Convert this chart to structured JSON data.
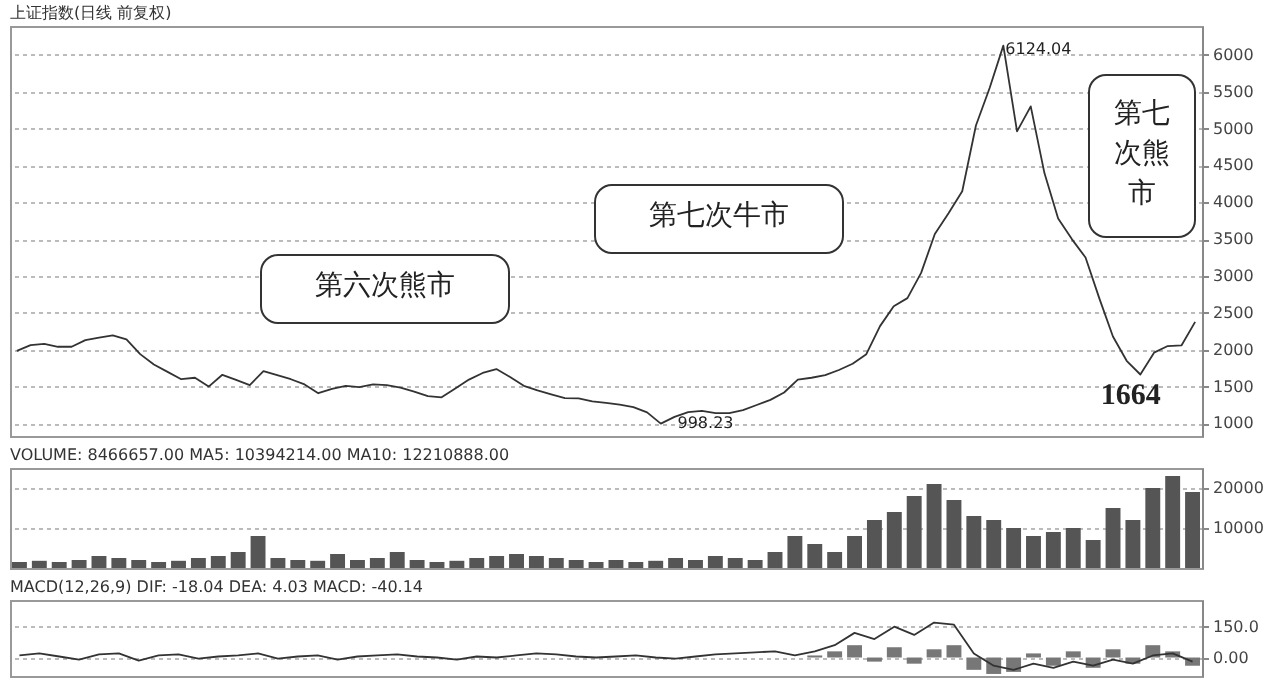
{
  "chart_data": [
    {
      "type": "line",
      "title": "上证指数(日线 前复权)",
      "color": "#333333",
      "categories": [
        null,
        null,
        null,
        null,
        null,
        null,
        null,
        null,
        null,
        null,
        null,
        null,
        null,
        null,
        null,
        null,
        null,
        null,
        null,
        null,
        null,
        null,
        null,
        null,
        null,
        null,
        null,
        null,
        null,
        null,
        null,
        null,
        null,
        null,
        null,
        null,
        null,
        null,
        null,
        null,
        null,
        null,
        null,
        null,
        null,
        null,
        null,
        null,
        null,
        null,
        null,
        null,
        null,
        null,
        null,
        null,
        null,
        null,
        null,
        null,
        null,
        null,
        null,
        null,
        null,
        null,
        null,
        null,
        null,
        null,
        null,
        null,
        null,
        null,
        null,
        null,
        null,
        null,
        null,
        null,
        null,
        null,
        null,
        null,
        null,
        null,
        null
      ],
      "values": [
        1984,
        2062,
        2078,
        2040,
        2040,
        2130,
        2165,
        2195,
        2140,
        1940,
        1800,
        1700,
        1600,
        1620,
        1500,
        1660,
        1590,
        1520,
        1710,
        1655,
        1600,
        1530,
        1410,
        1470,
        1510,
        1492,
        1530,
        1520,
        1485,
        1433,
        1370,
        1355,
        1475,
        1595,
        1685,
        1738,
        1630,
        1510,
        1450,
        1395,
        1344,
        1340,
        1300,
        1280,
        1255,
        1221,
        1150,
        998.23,
        1090,
        1155,
        1172,
        1140,
        1140,
        1180,
        1250,
        1320,
        1420,
        1595,
        1620,
        1655,
        1725,
        1810,
        1940,
        2320,
        2590,
        2700,
        3042,
        3570,
        3850,
        4149,
        5040,
        5550,
        6124.04,
        4961,
        5300,
        4395,
        3780,
        3500,
        3250,
        2700,
        2180,
        1850,
        1664,
        1960,
        2050,
        2058,
        2378
      ],
      "ylim": [
        830,
        6390
      ],
      "yticks": [
        1000,
        1500,
        2000,
        2500,
        3000,
        3500,
        4000,
        4500,
        5000,
        5500,
        6000
      ],
      "grid": "y",
      "tick_labels": "y",
      "annotations": [
        "6124.04",
        "998.23",
        "1664",
        "第六次熊市",
        "第七次牛市",
        "第七次熊市"
      ]
    },
    {
      "type": "bar",
      "title": "VOLUME: 8466657.00 MA5: 10394214.00 MA10: 12210888.00",
      "color": "#555555",
      "categories": [
        null,
        null,
        null,
        null,
        null,
        null,
        null,
        null,
        null,
        null,
        null,
        null,
        null,
        null,
        null,
        null,
        null,
        null,
        null,
        null,
        null,
        null,
        null,
        null,
        null,
        null,
        null,
        null,
        null,
        null,
        null,
        null,
        null,
        null,
        null,
        null,
        null,
        null,
        null,
        null,
        null,
        null,
        null,
        null,
        null,
        null,
        null,
        null,
        null,
        null,
        null,
        null,
        null,
        null,
        null,
        null,
        null,
        null,
        null,
        null
      ],
      "values": [
        1500,
        1800,
        1500,
        2000,
        3000,
        2500,
        2000,
        1500,
        1800,
        2500,
        3000,
        4000,
        8000,
        2500,
        2000,
        1800,
        3500,
        2000,
        2500,
        4000,
        2000,
        1500,
        1800,
        2500,
        3000,
        3500,
        3000,
        2500,
        2000,
        1500,
        2000,
        1500,
        1800,
        2500,
        2000,
        3000,
        2500,
        2000,
        4000,
        8000,
        6000,
        4000,
        8000,
        12000,
        14000,
        18000,
        21000,
        17000,
        13000,
        12000,
        10000,
        8000,
        9000,
        10000,
        7000,
        15000,
        12000,
        20000,
        23000,
        19000
      ],
      "ylim": [
        0,
        25000
      ],
      "yticks": [
        10000,
        20000
      ],
      "grid": "y",
      "tick_labels": "y"
    },
    {
      "type": "line",
      "title": "MACD(12,26,9) DIF: -18.04 DEA: 4.03 MACD: -40.14",
      "categories": [
        null,
        null,
        null,
        null,
        null,
        null,
        null,
        null,
        null,
        null,
        null,
        null,
        null,
        null,
        null,
        null,
        null,
        null,
        null,
        null,
        null,
        null,
        null,
        null,
        null,
        null,
        null,
        null,
        null,
        null,
        null,
        null,
        null,
        null,
        null,
        null,
        null,
        null,
        null,
        null,
        null,
        null,
        null,
        null,
        null,
        null,
        null,
        null,
        null,
        null,
        null,
        null,
        null,
        null,
        null,
        null,
        null,
        null,
        null,
        null
      ],
      "series": [
        {
          "type": "bar",
          "color": "#777777",
          "values": [
            null,
            null,
            null,
            null,
            null,
            null,
            null,
            null,
            null,
            null,
            null,
            null,
            null,
            null,
            null,
            null,
            null,
            null,
            null,
            null,
            null,
            null,
            null,
            null,
            null,
            null,
            null,
            null,
            null,
            null,
            null,
            null,
            null,
            null,
            null,
            null,
            null,
            null,
            null,
            null,
            10,
            30,
            60,
            -20,
            50,
            -30,
            40,
            60,
            -60,
            -80,
            -70,
            20,
            -40,
            30,
            -50,
            40,
            -30,
            60,
            30,
            -40
          ]
        },
        {
          "color": "#333333",
          "values": [
            10,
            20,
            5,
            -10,
            15,
            20,
            -15,
            10,
            15,
            -5,
            5,
            10,
            20,
            -5,
            5,
            10,
            -10,
            5,
            10,
            15,
            5,
            0,
            -10,
            5,
            0,
            10,
            20,
            15,
            5,
            0,
            5,
            10,
            0,
            -5,
            5,
            15,
            20,
            25,
            30,
            10,
            30,
            60,
            120,
            90,
            150,
            110,
            170,
            160,
            20,
            -40,
            -60,
            -30,
            -50,
            -20,
            -40,
            -10,
            -30,
            10,
            20,
            -20
          ]
        }
      ],
      "ylim": [
        -90,
        280
      ],
      "yticks": [
        {
          "value": 150,
          "label": "150.0"
        },
        {
          "value": 0,
          "label": "0.00"
        }
      ],
      "grid": "y",
      "tick_labels": "y"
    }
  ]
}
